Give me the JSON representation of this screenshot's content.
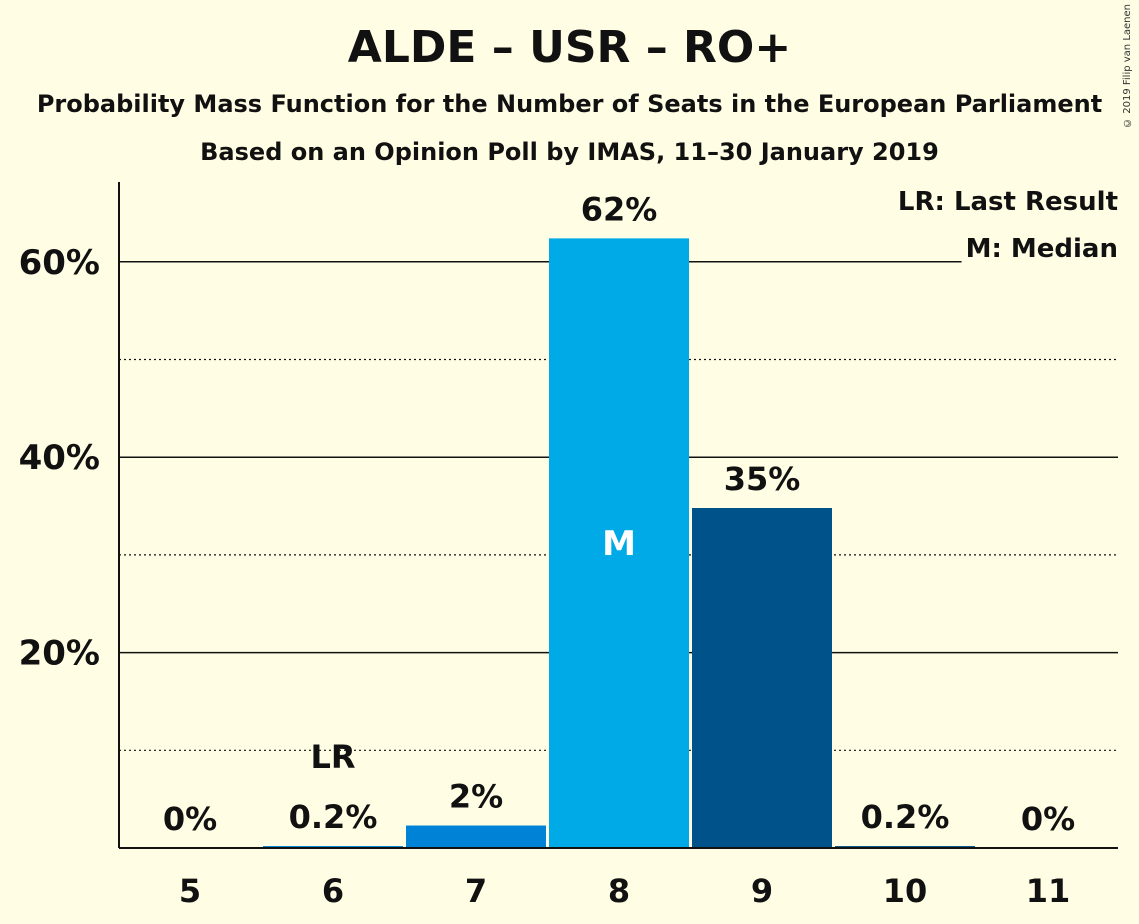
{
  "chart_data": {
    "type": "bar",
    "title": "ALDE – USR – RO+",
    "subtitle": "Probability Mass Function for the Number of Seats in the European Parliament",
    "subtitle2": "Based on an Opinion Poll by IMAS, 11–30 January 2019",
    "categories": [
      "5",
      "6",
      "7",
      "8",
      "9",
      "10",
      "11"
    ],
    "values": [
      0,
      0.2,
      2.3,
      62.4,
      34.8,
      0.2,
      0
    ],
    "value_labels": [
      "0%",
      "0.2%",
      "2%",
      "62%",
      "35%",
      "0.2%",
      "0%"
    ],
    "bar_colors": [
      "#0083D6",
      "#0083D6",
      "#0083D6",
      "#00AAE6",
      "#00528A",
      "#00528A",
      "#00528A"
    ],
    "ylim": [
      0,
      68
    ],
    "y_ticks": [
      {
        "value": 20,
        "label": "20%"
      },
      {
        "value": 40,
        "label": "40%"
      },
      {
        "value": 60,
        "label": "60%"
      }
    ],
    "minor_gridlines": [
      10,
      30,
      50
    ],
    "last_result": {
      "category": "6",
      "marker": "LR"
    },
    "median": {
      "category": "8",
      "marker": "M"
    },
    "legend": {
      "placement": "top-right",
      "items": [
        "LR: Last Result",
        "M: Median"
      ]
    }
  },
  "copyright": "© 2019 Filip van Laenen"
}
